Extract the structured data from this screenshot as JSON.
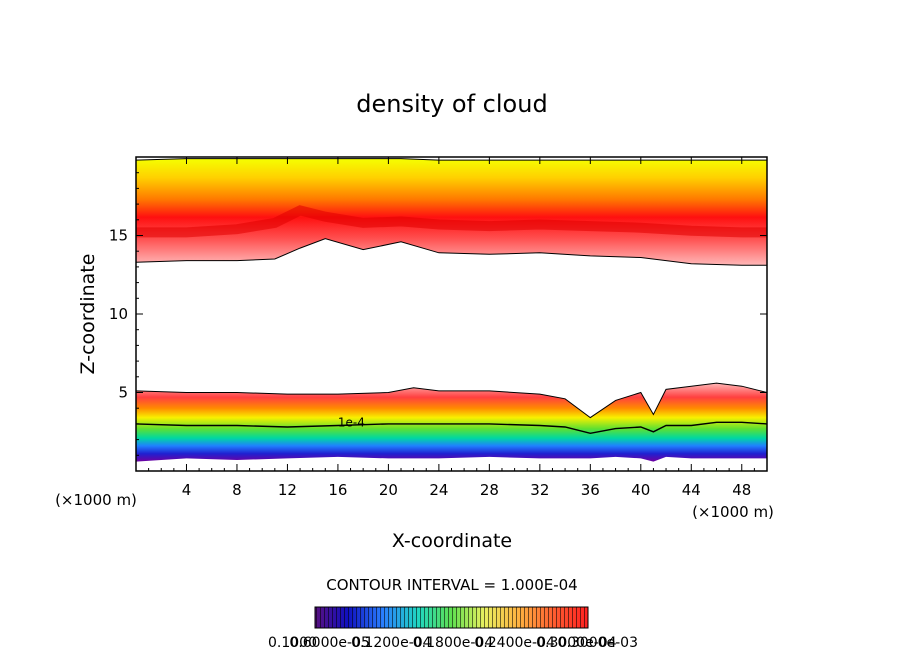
{
  "chart_data": {
    "type": "heatmap",
    "title": "density of cloud",
    "xlabel": "X-coordinate",
    "ylabel": "Z-coordinate",
    "x_unit": "(×1000 m)",
    "x_unit_right": "(×1000 m)",
    "xlim": [
      0,
      50
    ],
    "ylim": [
      0,
      20
    ],
    "x_ticks": [
      4,
      8,
      12,
      16,
      20,
      24,
      28,
      32,
      36,
      40,
      44,
      48
    ],
    "y_ticks": [
      5,
      10,
      15
    ],
    "contour_interval_label": "CONTOUR INTERVAL = 1.000E-04",
    "contour_label": "1e-4",
    "colorbar_labels": [
      "0.1000",
      "0.6000e-05",
      "0.1200e-04",
      "0.1800e-04",
      "0.2400e-04",
      "0.3000e-04",
      "0.3000e-03"
    ],
    "upper_layer": {
      "x": [
        0,
        4,
        8,
        11,
        13,
        15,
        18,
        21,
        24,
        28,
        32,
        36,
        40,
        44,
        48,
        50
      ],
      "top": [
        19.8,
        19.9,
        19.9,
        19.9,
        19.9,
        19.9,
        19.9,
        19.9,
        19.8,
        19.8,
        19.8,
        19.8,
        19.8,
        19.8,
        19.8,
        19.8
      ],
      "bottom": [
        13.3,
        13.4,
        13.4,
        13.5,
        14.2,
        14.8,
        14.1,
        14.6,
        13.9,
        13.8,
        13.9,
        13.7,
        13.6,
        13.2,
        13.1,
        13.1
      ],
      "peak_z": [
        15.2,
        15.2,
        15.4,
        15.8,
        16.6,
        16.2,
        15.8,
        15.9,
        15.7,
        15.6,
        15.7,
        15.6,
        15.5,
        15.3,
        15.2,
        15.2
      ]
    },
    "lower_layer": {
      "x": [
        0,
        4,
        8,
        12,
        16,
        20,
        22,
        24,
        28,
        32,
        34,
        36,
        38,
        40,
        41,
        42,
        44,
        46,
        48,
        50
      ],
      "top": [
        5.1,
        5.0,
        5.0,
        4.9,
        4.9,
        5.0,
        5.3,
        5.1,
        5.1,
        4.9,
        4.6,
        3.4,
        4.5,
        5.0,
        3.6,
        5.2,
        5.4,
        5.6,
        5.4,
        5.0
      ],
      "contour": [
        3.0,
        2.9,
        2.9,
        2.8,
        2.9,
        3.0,
        3.0,
        3.0,
        3.0,
        2.9,
        2.8,
        2.4,
        2.7,
        2.8,
        2.5,
        2.9,
        2.9,
        3.1,
        3.1,
        3.0
      ],
      "bottom": [
        0.6,
        0.8,
        0.7,
        0.8,
        0.9,
        0.8,
        0.8,
        0.8,
        0.9,
        0.8,
        0.8,
        0.8,
        0.9,
        0.8,
        0.6,
        0.9,
        0.8,
        0.8,
        0.8,
        0.8
      ]
    }
  }
}
